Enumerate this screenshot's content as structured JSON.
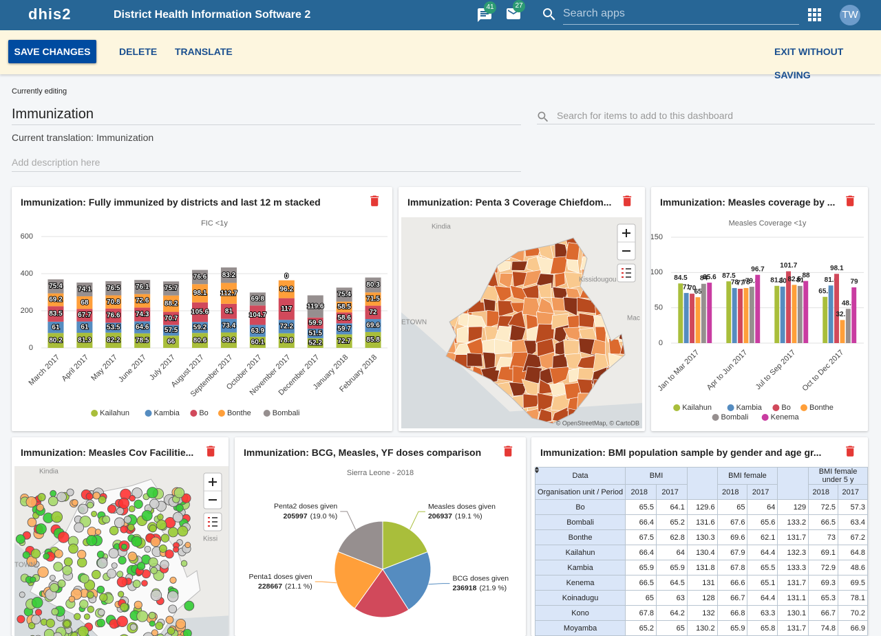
{
  "header": {
    "logo": "dhis2",
    "title": "District Health Information Software 2",
    "message_count": 41,
    "mail_count": 27,
    "search_placeholder": "Search apps",
    "user_initials": "TW"
  },
  "toolbar": {
    "save": "SAVE CHANGES",
    "delete": "DELETE",
    "translate": "TRANSLATE",
    "exit": "EXIT WITHOUT SAVING"
  },
  "editor": {
    "label": "Currently editing",
    "name": "Immunization",
    "translation": "Current translation: Immunization",
    "description_placeholder": "Add description here",
    "item_search_placeholder": "Search for items to add to this dashboard"
  },
  "chart_data": [
    {
      "type": "stacked_bar",
      "item_title": "Immunization: Fully immunized by districts and last 12 m stacked",
      "title": "FIC <1y",
      "categories": [
        "March 2017",
        "April 2017",
        "May 2017",
        "June 2017",
        "July 2017",
        "August 2017",
        "September 2017",
        "October 2017",
        "November 2017",
        "December 2017",
        "January 2018",
        "February 2018"
      ],
      "series": [
        {
          "name": "Kailahun",
          "color": "#a9be3b",
          "values": [
            80.2,
            81.3,
            82.2,
            78.5,
            66,
            80.6,
            83.2,
            60.1,
            78.8,
            52.2,
            72.7,
            85.8
          ]
        },
        {
          "name": "Kambia",
          "color": "#558cc0",
          "values": [
            61,
            61,
            53.5,
            64.6,
            57.5,
            59.2,
            73.4,
            63.9,
            72.2,
            51.5,
            59.7,
            69.6
          ]
        },
        {
          "name": "Bo",
          "color": "#d1495b",
          "values": [
            83.5,
            67.7,
            76.6,
            74.3,
            70.7,
            105.6,
            81,
            104.7,
            117,
            59.9,
            58.6,
            72
          ]
        },
        {
          "name": "Bonthe",
          "color": "#ff9f3a",
          "values": [
            69.2,
            68,
            70.8,
            72.6,
            88.2,
            98.1,
            112.7,
            null,
            96.2,
            null,
            58.5,
            71.5
          ]
        },
        {
          "name": "Bombali",
          "color": "#968f8f",
          "values": [
            75.4,
            74.1,
            76.5,
            76.1,
            75.7,
            76.6,
            83.2,
            69.8,
            0,
            119.6,
            75.4,
            80.3
          ]
        }
      ],
      "ylim": [
        0,
        600
      ],
      "yticks": [
        0,
        200,
        400,
        600
      ],
      "grid": true,
      "legend": "bottom"
    },
    {
      "type": "bar",
      "item_title": "Immunization: Measles coverage by ...",
      "title": "Measles Coverage <1y",
      "categories": [
        "Jan to Mar 2017",
        "Apr to Jun 2017",
        "Jul to Sep 2017",
        "Oct to Dec 2017"
      ],
      "series": [
        {
          "name": "Kailahun",
          "color": "#a9be3b",
          "values": [
            84.5,
            87.5,
            81.1,
            65.5
          ]
        },
        {
          "name": "Kambia",
          "color": "#558cc0",
          "values": [
            71,
            78,
            80,
            81.6
          ]
        },
        {
          "name": "Bo",
          "color": "#d1495b",
          "values": [
            70,
            77,
            101.7,
            98.1
          ]
        },
        {
          "name": "Bonthe",
          "color": "#ff9f3a",
          "values": [
            65,
            78,
            82.5,
            32.7
          ]
        },
        {
          "name": "Bombali",
          "color": "#968f8f",
          "values": [
            84,
            79.8,
            81,
            48.5
          ]
        },
        {
          "name": "Kenema",
          "color": "#c93ca1",
          "values": [
            85.6,
            96.7,
            88,
            79
          ]
        }
      ],
      "ylim": [
        0,
        150
      ],
      "yticks": [
        0,
        50,
        100,
        150
      ],
      "grid": true,
      "legend": "bottom"
    },
    {
      "type": "pie",
      "item_title": "Immunization: BCG, Measles, YF doses comparison",
      "title": "Sierra Leone - 2018",
      "categories": [
        "Measles doses given",
        "BCG doses given",
        null,
        "Penta1 doses given",
        "Penta2 doses given"
      ],
      "values": [
        206937,
        236918,
        205200,
        228667,
        205997
      ],
      "percent_labels": [
        "(19.1 %)",
        "(21.9 %)",
        null,
        "(21.1 %)",
        "(19.0 %)"
      ],
      "colors": [
        "#a9be3b",
        "#558cc0",
        "#d1495b",
        "#ff9f3a",
        "#968f8f"
      ]
    }
  ],
  "maps": [
    {
      "title": "Immunization: Penta 3 Coverage Chiefdom...",
      "place_labels": [
        "Kindia",
        "Kissidougou",
        "ETOWN",
        "Mac"
      ],
      "attribution": "© OpenStreetMap, © CartoDB"
    },
    {
      "title": "Immunization: Measles Cov Facilitie...",
      "place_labels": [
        "Kindia",
        "Kissi",
        "TOWN"
      ]
    }
  ],
  "table": {
    "title": "Immunization: BMI population sample by gender and age gr...",
    "data_label": "Data",
    "row_header_label": "Organisation unit / Period",
    "groups": [
      "BMI",
      "BMI female",
      "BMI female under 5 y"
    ],
    "periods": [
      "2018",
      "2017"
    ],
    "rows": [
      {
        "name": "Bo",
        "values": [
          65.5,
          64.1,
          129.6,
          65,
          64,
          129,
          72.5,
          57.3
        ]
      },
      {
        "name": "Bombali",
        "values": [
          66.4,
          65.2,
          131.6,
          67.6,
          65.6,
          133.2,
          66.5,
          63.4
        ]
      },
      {
        "name": "Bonthe",
        "values": [
          67.5,
          62.8,
          130.3,
          69.6,
          62.1,
          131.7,
          73,
          67.2
        ]
      },
      {
        "name": "Kailahun",
        "values": [
          66.4,
          64,
          130.4,
          67.9,
          64.4,
          132.3,
          69.1,
          64.8
        ]
      },
      {
        "name": "Kambia",
        "values": [
          65.9,
          65.9,
          131.8,
          67.8,
          65.5,
          133.3,
          72.9,
          48.6
        ]
      },
      {
        "name": "Kenema",
        "values": [
          66.5,
          64.5,
          131,
          66.6,
          65.1,
          131.7,
          69.3,
          69.5
        ]
      },
      {
        "name": "Koinadugu",
        "values": [
          65,
          63,
          128,
          66.7,
          64.4,
          131.1,
          65.3,
          78.1
        ]
      },
      {
        "name": "Kono",
        "values": [
          67.8,
          64.2,
          132,
          66.8,
          63.3,
          130.1,
          66.7,
          70.2
        ]
      },
      {
        "name": "Moyamba",
        "values": [
          65.2,
          65,
          130.2,
          65.9,
          65.8,
          131.7,
          74.8,
          66.9
        ]
      }
    ]
  }
}
